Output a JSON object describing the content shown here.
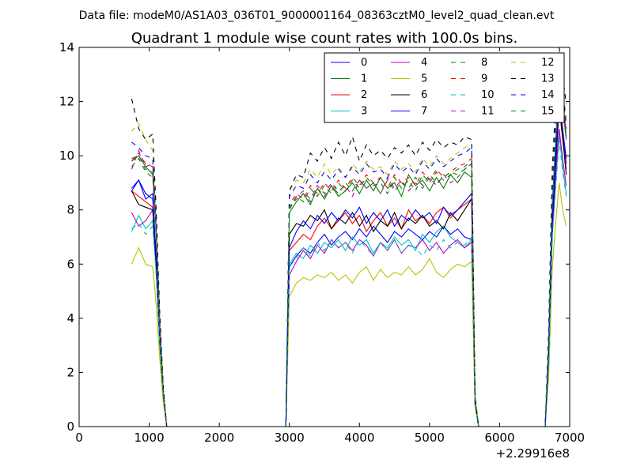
{
  "chart_data": {
    "type": "line",
    "suptitle": "Data file: modeM0/AS1A03_036T01_9000001164_08363cztM0_level2_quad_clean.evt",
    "title": "Quadrant 1 module wise count rates with 100.0s bins.",
    "xlabel": "",
    "ylabel": "",
    "x_offset_label": "+2.29916e8",
    "xlim": [
      0,
      7000
    ],
    "ylim": [
      0,
      14
    ],
    "xticks": [
      "0",
      "1000",
      "2000",
      "3000",
      "4000",
      "5000",
      "6000",
      "7000"
    ],
    "yticks": [
      "0",
      "2",
      "4",
      "6",
      "8",
      "10",
      "12",
      "14"
    ],
    "grid": false,
    "legend_position": "top-right",
    "time_segments": [
      {
        "x": [
          750,
          850,
          950,
          1050,
          1100,
          1150,
          1200,
          1250
        ]
      },
      {
        "x": [
          2950,
          3000,
          3100,
          3200,
          3300,
          3400,
          3500,
          3600,
          3700,
          3800,
          3900,
          4000,
          4100,
          4200,
          4300,
          4400,
          4500,
          4600,
          4700,
          4800,
          4900,
          5000,
          5100,
          5200,
          5300,
          5400,
          5500,
          5600,
          5650,
          5700
        ]
      },
      {
        "x": [
          6650,
          6700,
          6750,
          6800,
          6850,
          6900,
          6950
        ]
      }
    ],
    "series": [
      {
        "name": "0",
        "color": "#0000ff",
        "dash": "solid",
        "segments": [
          [
            8.7,
            9.1,
            8.4,
            8.6,
            6.2,
            3.4,
            1.2,
            0
          ],
          [
            0,
            5.9,
            6.3,
            6.6,
            6.4,
            6.8,
            7.1,
            6.7,
            7.0,
            7.2,
            6.9,
            7.3,
            7.0,
            7.4,
            7.1,
            6.8,
            7.2,
            7.0,
            7.3,
            7.1,
            6.9,
            7.2,
            7.0,
            7.4,
            7.1,
            7.3,
            7.0,
            6.9,
            0.8,
            0
          ],
          [
            0,
            2.5,
            7.2,
            9.5,
            12.0,
            10.8,
            9.7
          ]
        ]
      },
      {
        "name": "1",
        "color": "#008000",
        "dash": "solid",
        "segments": [
          [
            9.8,
            10.0,
            9.6,
            9.3,
            7.2,
            3.8,
            1.3,
            0
          ],
          [
            0,
            7.9,
            8.3,
            8.6,
            8.2,
            8.8,
            8.4,
            8.9,
            8.5,
            8.7,
            9.0,
            8.6,
            9.1,
            8.7,
            9.2,
            8.8,
            9.0,
            8.5,
            9.3,
            8.9,
            9.1,
            8.7,
            9.2,
            8.8,
            9.3,
            9.0,
            9.4,
            9.2,
            0.9,
            0
          ],
          [
            0,
            3.0,
            8.2,
            10.5,
            13.0,
            11.8,
            10.6
          ]
        ]
      },
      {
        "name": "2",
        "color": "#ff0000",
        "dash": "solid",
        "segments": [
          [
            8.7,
            8.5,
            8.3,
            8.1,
            6.1,
            3.3,
            1.2,
            0
          ],
          [
            0,
            6.5,
            6.8,
            7.1,
            6.9,
            7.4,
            7.7,
            7.3,
            7.6,
            7.9,
            7.5,
            7.8,
            7.2,
            7.6,
            7.9,
            7.4,
            7.7,
            7.3,
            8.0,
            7.6,
            7.8,
            7.5,
            7.9,
            8.1,
            7.7,
            8.0,
            8.2,
            8.4,
            0.9,
            0
          ],
          [
            0,
            2.6,
            7.4,
            9.8,
            11.8,
            10.6,
            9.5
          ]
        ]
      },
      {
        "name": "3",
        "color": "#00bfbf",
        "dash": "solid",
        "segments": [
          [
            7.2,
            7.8,
            7.3,
            7.6,
            5.7,
            3.0,
            1.1,
            0
          ],
          [
            0,
            6.0,
            6.4,
            6.2,
            6.7,
            6.4,
            6.8,
            6.6,
            6.9,
            6.5,
            7.0,
            6.7,
            6.9,
            6.4,
            6.8,
            6.6,
            7.0,
            6.7,
            6.9,
            6.5,
            7.1,
            6.8,
            7.2,
            7.4,
            7.0,
            6.8,
            6.6,
            6.9,
            0.8,
            0
          ],
          [
            0,
            2.3,
            7.0,
            9.0,
            10.8,
            9.6,
            8.6
          ]
        ]
      },
      {
        "name": "4",
        "color": "#bf00bf",
        "dash": "solid",
        "segments": [
          [
            7.9,
            7.4,
            7.6,
            8.0,
            5.9,
            3.2,
            1.1,
            0
          ],
          [
            0,
            5.6,
            6.1,
            6.5,
            6.2,
            6.7,
            6.4,
            6.9,
            6.6,
            6.8,
            6.5,
            6.9,
            6.7,
            6.3,
            6.8,
            6.5,
            6.9,
            6.4,
            6.7,
            6.6,
            6.9,
            6.5,
            6.8,
            6.4,
            6.7,
            6.9,
            6.6,
            6.8,
            0.8,
            0
          ],
          [
            0,
            2.4,
            7.1,
            9.3,
            11.0,
            9.9,
            8.9
          ]
        ]
      },
      {
        "name": "5",
        "color": "#bfbf00",
        "dash": "solid",
        "segments": [
          [
            6.0,
            6.6,
            6.0,
            5.9,
            4.5,
            2.5,
            0.9,
            0
          ],
          [
            0,
            4.8,
            5.3,
            5.5,
            5.4,
            5.6,
            5.5,
            5.7,
            5.4,
            5.6,
            5.3,
            5.7,
            5.9,
            5.4,
            5.8,
            5.5,
            5.7,
            5.6,
            5.9,
            5.6,
            5.8,
            6.2,
            5.7,
            5.5,
            5.8,
            6.0,
            5.9,
            6.1,
            0.7,
            0
          ],
          [
            0,
            1.8,
            5.8,
            7.5,
            9.0,
            8.0,
            7.4
          ]
        ]
      },
      {
        "name": "6",
        "color": "#000000",
        "dash": "solid",
        "segments": [
          [
            8.7,
            8.2,
            8.1,
            8.0,
            6.0,
            3.2,
            1.2,
            0
          ],
          [
            0,
            7.1,
            7.5,
            7.4,
            7.8,
            7.6,
            8.0,
            7.3,
            7.7,
            7.5,
            7.9,
            7.4,
            7.8,
            7.2,
            7.6,
            7.4,
            7.9,
            7.3,
            7.7,
            7.5,
            7.8,
            7.4,
            7.6,
            7.3,
            7.9,
            7.6,
            8.0,
            8.4,
            0.9,
            0
          ],
          [
            0,
            2.7,
            7.5,
            9.7,
            11.9,
            10.7,
            9.3
          ]
        ]
      },
      {
        "name": "7",
        "color": "#0000ff",
        "dash": "solid",
        "segments": [
          [
            8.8,
            9.1,
            8.6,
            8.4,
            6.3,
            3.4,
            1.2,
            0
          ],
          [
            0,
            6.6,
            7.2,
            7.6,
            7.3,
            7.8,
            7.5,
            7.9,
            7.6,
            8.0,
            7.7,
            8.1,
            7.5,
            7.9,
            7.6,
            8.0,
            7.4,
            7.8,
            7.6,
            8.0,
            7.7,
            7.9,
            7.5,
            8.1,
            7.8,
            8.0,
            8.3,
            8.6,
            0.9,
            0
          ],
          [
            0,
            2.8,
            7.6,
            10.0,
            12.2,
            11.0,
            9.9
          ]
        ]
      },
      {
        "name": "8",
        "color": "#008000",
        "dash": "dashed",
        "segments": [
          [
            9.6,
            9.9,
            9.4,
            9.2,
            7.0,
            3.7,
            1.3,
            0
          ],
          [
            0,
            8.0,
            8.5,
            8.3,
            8.8,
            8.5,
            8.9,
            8.6,
            9.0,
            8.7,
            9.1,
            8.8,
            9.2,
            8.9,
            9.0,
            8.6,
            9.2,
            8.8,
            9.1,
            8.7,
            9.3,
            9.0,
            9.4,
            9.1,
            9.3,
            9.5,
            9.6,
            9.8,
            1.0,
            0
          ],
          [
            0,
            3.1,
            8.4,
            10.7,
            13.3,
            12.0,
            10.9
          ]
        ]
      },
      {
        "name": "9",
        "color": "#ff0000",
        "dash": "dashed",
        "segments": [
          [
            9.8,
            10.1,
            9.7,
            9.6,
            7.3,
            3.9,
            1.4,
            0
          ],
          [
            0,
            8.2,
            8.6,
            8.4,
            8.9,
            8.6,
            9.0,
            8.7,
            9.1,
            8.8,
            9.2,
            8.9,
            9.3,
            9.0,
            9.2,
            8.8,
            9.3,
            9.0,
            9.2,
            8.9,
            9.4,
            9.1,
            9.5,
            9.2,
            9.4,
            9.6,
            9.7,
            9.9,
            1.0,
            0
          ],
          [
            0,
            3.2,
            8.5,
            10.9,
            13.4,
            12.2,
            11.0
          ]
        ]
      },
      {
        "name": "10",
        "color": "#00bfbf",
        "dash": "dashed",
        "segments": [
          [
            7.3,
            7.5,
            7.1,
            7.4,
            5.6,
            3.0,
            1.1,
            0
          ],
          [
            0,
            5.9,
            6.2,
            6.6,
            6.3,
            6.8,
            6.5,
            6.9,
            6.6,
            6.8,
            6.4,
            6.9,
            6.6,
            6.3,
            6.8,
            6.5,
            6.9,
            6.4,
            6.7,
            6.6,
            6.3,
            6.7,
            6.5,
            6.9,
            6.6,
            6.8,
            6.7,
            7.0,
            0.8,
            0
          ],
          [
            0,
            2.2,
            6.9,
            8.8,
            10.6,
            9.4,
            8.5
          ]
        ]
      },
      {
        "name": "11",
        "color": "#bf00bf",
        "dash": "dashed",
        "segments": [
          [
            9.5,
            10.2,
            9.6,
            9.7,
            7.3,
            3.8,
            1.3,
            0
          ],
          [
            0,
            8.1,
            8.5,
            8.7,
            8.4,
            8.9,
            8.6,
            9.0,
            8.7,
            8.9,
            8.5,
            9.1,
            8.8,
            9.0,
            8.6,
            9.2,
            8.8,
            9.1,
            8.7,
            9.0,
            8.8,
            9.2,
            8.9,
            9.3,
            9.0,
            9.2,
            9.5,
            9.7,
            1.0,
            0
          ],
          [
            0,
            3.1,
            8.3,
            10.6,
            13.1,
            11.9,
            10.7
          ]
        ]
      },
      {
        "name": "12",
        "color": "#bfbf00",
        "dash": "dashed",
        "segments": [
          [
            10.9,
            11.2,
            10.6,
            10.2,
            7.7,
            4.0,
            1.4,
            0
          ],
          [
            0,
            8.7,
            9.1,
            9.0,
            9.5,
            9.2,
            9.7,
            9.3,
            9.6,
            9.2,
            9.7,
            9.4,
            9.8,
            9.5,
            9.6,
            9.3,
            9.8,
            9.5,
            9.7,
            9.4,
            9.9,
            9.6,
            10.0,
            9.7,
            9.9,
            10.1,
            10.3,
            10.4,
            1.1,
            0
          ],
          [
            0,
            3.4,
            8.9,
            11.3,
            13.8,
            12.6,
            11.4
          ]
        ]
      },
      {
        "name": "13",
        "color": "#000000",
        "dash": "dashed",
        "segments": [
          [
            12.1,
            11.0,
            10.6,
            10.8,
            8.0,
            4.2,
            1.5,
            0
          ],
          [
            0,
            8.7,
            9.3,
            9.2,
            10.1,
            9.8,
            10.3,
            9.9,
            10.5,
            10.0,
            10.7,
            9.8,
            10.4,
            10.0,
            10.2,
            9.9,
            10.3,
            10.1,
            10.4,
            10.0,
            10.5,
            10.2,
            10.6,
            10.3,
            10.5,
            10.4,
            10.7,
            10.6,
            1.1,
            0
          ],
          [
            0,
            3.6,
            9.5,
            11.9,
            14.0,
            13.0,
            11.9
          ]
        ]
      },
      {
        "name": "14",
        "color": "#0000ff",
        "dash": "dashed",
        "segments": [
          [
            10.5,
            10.3,
            10.0,
            9.9,
            7.5,
            3.9,
            1.4,
            0
          ],
          [
            0,
            8.5,
            8.9,
            8.8,
            9.3,
            9.0,
            9.4,
            9.1,
            9.5,
            9.2,
            9.6,
            9.3,
            9.7,
            9.4,
            9.5,
            9.2,
            9.7,
            9.4,
            9.6,
            9.3,
            9.8,
            9.5,
            9.9,
            9.6,
            9.8,
            10.0,
            10.1,
            10.3,
            1.1,
            0
          ],
          [
            0,
            3.3,
            8.8,
            11.1,
            13.6,
            12.4,
            11.2
          ]
        ]
      },
      {
        "name": "15",
        "color": "#008000",
        "dash": "dashed",
        "segments": [
          [
            9.9,
            10.0,
            9.5,
            9.4,
            7.1,
            3.8,
            1.3,
            0
          ],
          [
            0,
            8.1,
            8.4,
            8.6,
            8.3,
            8.8,
            8.5,
            8.9,
            8.6,
            9.0,
            8.7,
            9.1,
            8.8,
            9.0,
            8.6,
            9.1,
            8.7,
            9.0,
            8.8,
            9.2,
            8.9,
            9.3,
            9.0,
            9.2,
            9.4,
            9.3,
            9.5,
            9.7,
            1.0,
            0
          ],
          [
            0,
            3.0,
            8.3,
            10.6,
            13.2,
            11.9,
            10.8
          ]
        ]
      }
    ]
  }
}
